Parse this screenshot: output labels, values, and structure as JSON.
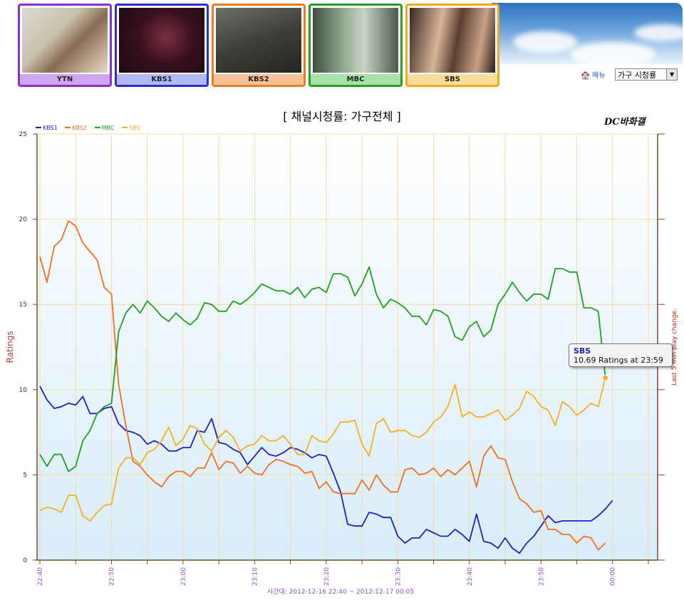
{
  "channels": [
    {
      "label": "YTN",
      "border": "#8a2ecf",
      "bar": "#cfa6f0"
    },
    {
      "label": "KBS1",
      "border": "#2e2ed0",
      "bar": "#b3b8f2"
    },
    {
      "label": "KBS2",
      "border": "#f07a1e",
      "bar": "#f7c29a"
    },
    {
      "label": "MBC",
      "border": "#24a024",
      "bar": "#a8e0a8"
    },
    {
      "label": "SBS",
      "border": "#f4a81e",
      "bar": "#f8dc9a"
    }
  ],
  "menu": {
    "label": "메뉴",
    "icon": "house-icon"
  },
  "select": {
    "value": "가구 시청률"
  },
  "watermark": "DC바화갤",
  "tooltip": {
    "series": "SBS",
    "text": "10.69 Ratings at 23:59"
  },
  "chart_data": {
    "type": "line",
    "title": "[ 채널시청률: 가구전체 ]",
    "ylabel": "Ratings",
    "right_label": "Last 5 min play change.",
    "xlabel": "시간대: 2012-12-16 22:40 ~ 2012-12-17 00:05",
    "ylim": [
      0,
      25
    ],
    "yticks": [
      0,
      5,
      10,
      15,
      20,
      25
    ],
    "xlim": [
      0,
      86
    ],
    "xticks": [
      {
        "t": 0,
        "label": "22:40"
      },
      {
        "t": 10,
        "label": "22:50"
      },
      {
        "t": 20,
        "label": "23:00"
      },
      {
        "t": 30,
        "label": "23:10"
      },
      {
        "t": 40,
        "label": "23:20"
      },
      {
        "t": 50,
        "label": "23:30"
      },
      {
        "t": 60,
        "label": "23:40"
      },
      {
        "t": 70,
        "label": "23:50"
      },
      {
        "t": 80,
        "label": "00:00"
      }
    ],
    "x_start": "22:40",
    "grid": true,
    "legend_position": "top-left",
    "series": [
      {
        "name": "KBS1",
        "color": "#2020c0",
        "values": [
          10.2,
          9.4,
          8.9,
          9.0,
          9.2,
          9.1,
          9.6,
          8.6,
          8.6,
          8.9,
          9.0,
          8.0,
          7.6,
          7.5,
          7.3,
          6.8,
          7.0,
          6.8,
          6.4,
          6.4,
          6.6,
          6.6,
          7.6,
          7.5,
          8.3,
          6.9,
          6.8,
          6.5,
          6.3,
          5.6,
          6.1,
          6.6,
          6.2,
          6.1,
          6.3,
          6.6,
          6.5,
          6.3,
          6.0,
          6.2,
          6.1,
          5.1,
          4.0,
          2.1,
          2.0,
          2.0,
          2.8,
          2.7,
          2.5,
          2.5,
          1.4,
          1.0,
          1.3,
          1.3,
          1.8,
          1.6,
          1.4,
          1.4,
          1.8,
          1.5,
          1.1,
          2.7,
          1.1,
          1.0,
          0.7,
          1.3,
          0.7,
          0.4,
          1.0,
          1.4,
          2.0,
          2.6,
          2.2,
          2.3,
          2.3,
          2.3,
          2.3,
          2.3,
          2.6,
          3.0,
          3.5
        ]
      },
      {
        "name": "KBS2",
        "color": "#f07020",
        "values": [
          17.8,
          16.3,
          18.4,
          18.8,
          19.9,
          19.6,
          18.6,
          18.1,
          17.6,
          16.0,
          15.6,
          10.3,
          7.9,
          5.8,
          5.5,
          5.0,
          4.6,
          4.3,
          4.9,
          5.2,
          5.2,
          4.9,
          5.4,
          5.4,
          6.3,
          5.3,
          5.8,
          5.7,
          5.1,
          5.5,
          5.1,
          5.0,
          5.6,
          5.9,
          5.8,
          5.6,
          5.5,
          5.1,
          5.2,
          4.2,
          4.6,
          4.0,
          3.9,
          3.9,
          3.9,
          4.7,
          4.1,
          5.0,
          4.4,
          4.0,
          4.0,
          5.3,
          5.4,
          5.0,
          5.1,
          5.4,
          4.9,
          5.3,
          5.0,
          5.4,
          5.8,
          4.3,
          6.1,
          6.7,
          6.0,
          5.9,
          4.6,
          3.6,
          3.3,
          2.8,
          2.9,
          1.8,
          1.8,
          1.5,
          1.5,
          1.0,
          1.4,
          1.3,
          0.6,
          1.0
        ]
      },
      {
        "name": "MBC",
        "color": "#20a020",
        "values": [
          6.2,
          5.5,
          6.2,
          6.2,
          5.2,
          5.5,
          7.0,
          7.6,
          8.6,
          9.0,
          9.2,
          13.4,
          14.5,
          15.0,
          14.5,
          15.2,
          14.8,
          14.3,
          14.0,
          14.5,
          14.1,
          13.8,
          14.2,
          15.1,
          15.0,
          14.6,
          14.6,
          15.2,
          15.0,
          15.3,
          15.7,
          16.2,
          16.0,
          15.8,
          15.8,
          15.6,
          16.0,
          15.4,
          15.9,
          16.0,
          15.7,
          16.8,
          16.8,
          16.6,
          15.5,
          16.2,
          17.2,
          15.6,
          14.8,
          15.3,
          15.1,
          14.8,
          14.3,
          14.3,
          13.8,
          14.7,
          14.6,
          14.3,
          13.1,
          12.9,
          13.7,
          14.0,
          13.1,
          13.5,
          15.0,
          15.6,
          16.3,
          15.7,
          15.2,
          15.6,
          15.6,
          15.3,
          17.1,
          17.1,
          16.9,
          16.9,
          14.8,
          14.8,
          14.6,
          10.7
        ]
      },
      {
        "name": "SBS",
        "color": "#f4b020",
        "values": [
          2.9,
          3.1,
          3.0,
          2.8,
          3.8,
          3.8,
          2.6,
          2.3,
          2.8,
          3.2,
          3.3,
          5.4,
          6.0,
          6.0,
          5.6,
          6.3,
          6.5,
          7.0,
          7.8,
          6.7,
          7.1,
          7.9,
          7.7,
          6.8,
          6.4,
          7.2,
          7.6,
          7.2,
          6.4,
          6.7,
          6.8,
          7.3,
          7.0,
          7.0,
          7.3,
          6.8,
          6.2,
          6.2,
          7.3,
          7.0,
          6.9,
          7.4,
          8.1,
          8.1,
          8.2,
          6.8,
          6.1,
          8.0,
          8.3,
          7.5,
          7.6,
          7.6,
          7.3,
          7.2,
          7.5,
          8.1,
          8.4,
          9.0,
          10.3,
          8.4,
          8.7,
          8.4,
          8.4,
          8.6,
          8.8,
          8.2,
          8.5,
          8.9,
          9.9,
          9.6,
          9.0,
          8.8,
          7.9,
          9.3,
          9.0,
          8.5,
          8.8,
          9.2,
          9.0,
          10.69
        ]
      }
    ]
  }
}
